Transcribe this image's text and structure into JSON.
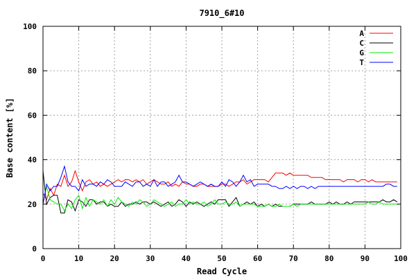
{
  "chart_data": {
    "type": "line",
    "title": "7910_6#10",
    "xlabel": "Read Cycle",
    "ylabel": "Base content [%]",
    "xlim": [
      0,
      100
    ],
    "ylim": [
      0,
      100
    ],
    "xticks": [
      0,
      10,
      20,
      30,
      40,
      50,
      60,
      70,
      80,
      90,
      100
    ],
    "yticks": [
      0,
      20,
      40,
      60,
      80,
      100
    ],
    "grid": true,
    "legend_position": "top-right",
    "x": [
      0,
      1,
      2,
      3,
      4,
      5,
      6,
      7,
      8,
      9,
      10,
      11,
      12,
      13,
      14,
      15,
      16,
      17,
      18,
      19,
      20,
      21,
      22,
      23,
      24,
      25,
      26,
      27,
      28,
      29,
      30,
      31,
      32,
      33,
      34,
      35,
      36,
      37,
      38,
      39,
      40,
      41,
      42,
      43,
      44,
      45,
      46,
      47,
      48,
      49,
      50,
      51,
      52,
      53,
      54,
      55,
      56,
      57,
      58,
      59,
      60,
      61,
      62,
      63,
      64,
      65,
      66,
      67,
      68,
      69,
      70,
      71,
      72,
      73,
      74,
      75,
      76,
      77,
      78,
      79,
      80,
      81,
      82,
      83,
      84,
      85,
      86,
      87,
      88,
      89,
      90,
      91,
      92,
      93,
      94,
      95,
      96,
      97,
      98,
      99
    ],
    "series": [
      {
        "name": "A",
        "color": "#ff0000",
        "values": [
          25,
          22,
          27,
          24,
          29,
          28,
          33,
          28,
          30,
          35,
          30,
          26,
          30,
          31,
          29,
          30,
          28,
          29,
          28,
          29,
          30,
          31,
          30,
          31,
          31,
          30,
          31,
          30,
          31,
          29,
          30,
          31,
          30,
          29,
          29,
          30,
          28,
          29,
          28,
          30,
          29,
          29,
          28,
          28,
          29,
          29,
          28,
          28,
          28,
          28,
          29,
          29,
          28,
          29,
          30,
          30,
          31,
          29,
          30,
          31,
          31,
          31,
          31,
          30,
          32,
          34,
          34,
          34,
          33,
          34,
          33,
          33,
          33,
          33,
          33,
          32,
          32,
          32,
          32,
          31,
          31,
          31,
          31,
          31,
          30,
          31,
          31,
          31,
          30,
          31,
          31,
          30,
          31,
          30,
          30,
          30,
          30,
          30,
          30,
          30
        ]
      },
      {
        "name": "C",
        "color": "#000000",
        "values": [
          35,
          20,
          23,
          24,
          24,
          16,
          16,
          22,
          21,
          17,
          22,
          21,
          19,
          22,
          22,
          20,
          21,
          21,
          19,
          20,
          19,
          19,
          21,
          19,
          20,
          20,
          21,
          20,
          21,
          21,
          20,
          21,
          20,
          19,
          20,
          21,
          19,
          20,
          22,
          21,
          19,
          21,
          20,
          21,
          20,
          19,
          20,
          21,
          20,
          22,
          22,
          22,
          19,
          21,
          23,
          19,
          20,
          21,
          20,
          21,
          19,
          20,
          19,
          20,
          19,
          20,
          19,
          19,
          19,
          19,
          20,
          20,
          20,
          20,
          20,
          21,
          20,
          20,
          20,
          20,
          21,
          20,
          21,
          20,
          20,
          21,
          20,
          21,
          21,
          21,
          21,
          21,
          21,
          21,
          21,
          22,
          21,
          21,
          22,
          21
        ]
      },
      {
        "name": "G",
        "color": "#00ee00",
        "values": [
          20,
          28,
          22,
          21,
          20,
          20,
          17,
          20,
          18,
          22,
          24,
          18,
          23,
          19,
          22,
          21,
          20,
          22,
          19,
          22,
          20,
          23,
          21,
          20,
          19,
          21,
          20,
          22,
          21,
          19,
          20,
          22,
          21,
          20,
          19,
          20,
          21,
          19,
          20,
          20,
          22,
          20,
          21,
          20,
          20,
          21,
          19,
          20,
          22,
          20,
          20,
          21,
          20,
          20,
          21,
          19,
          20,
          20,
          20,
          20,
          19,
          19,
          19,
          20,
          19,
          19,
          20,
          19,
          19,
          19,
          20,
          19,
          20,
          20,
          20,
          20,
          20,
          20,
          20,
          20,
          20,
          20,
          20,
          20,
          20,
          20,
          20,
          20,
          20,
          20,
          20,
          21,
          20,
          20,
          21,
          20,
          20,
          20,
          20,
          20
        ]
      },
      {
        "name": "T",
        "color": "#0000ff",
        "values": [
          20,
          29,
          26,
          28,
          28,
          32,
          37,
          30,
          28,
          28,
          26,
          31,
          28,
          29,
          29,
          28,
          30,
          29,
          31,
          30,
          28,
          28,
          28,
          30,
          29,
          28,
          30,
          30,
          28,
          29,
          28,
          31,
          28,
          30,
          30,
          28,
          29,
          30,
          33,
          30,
          30,
          29,
          28,
          29,
          30,
          29,
          28,
          29,
          28,
          28,
          30,
          28,
          31,
          30,
          28,
          30,
          33,
          30,
          31,
          28,
          29,
          29,
          29,
          29,
          28,
          28,
          27,
          27,
          28,
          27,
          28,
          27,
          28,
          28,
          27,
          28,
          27,
          28,
          28,
          28,
          28,
          28,
          28,
          28,
          28,
          28,
          28,
          28,
          28,
          28,
          28,
          28,
          28,
          28,
          28,
          28,
          29,
          29,
          28,
          28
        ]
      }
    ]
  }
}
